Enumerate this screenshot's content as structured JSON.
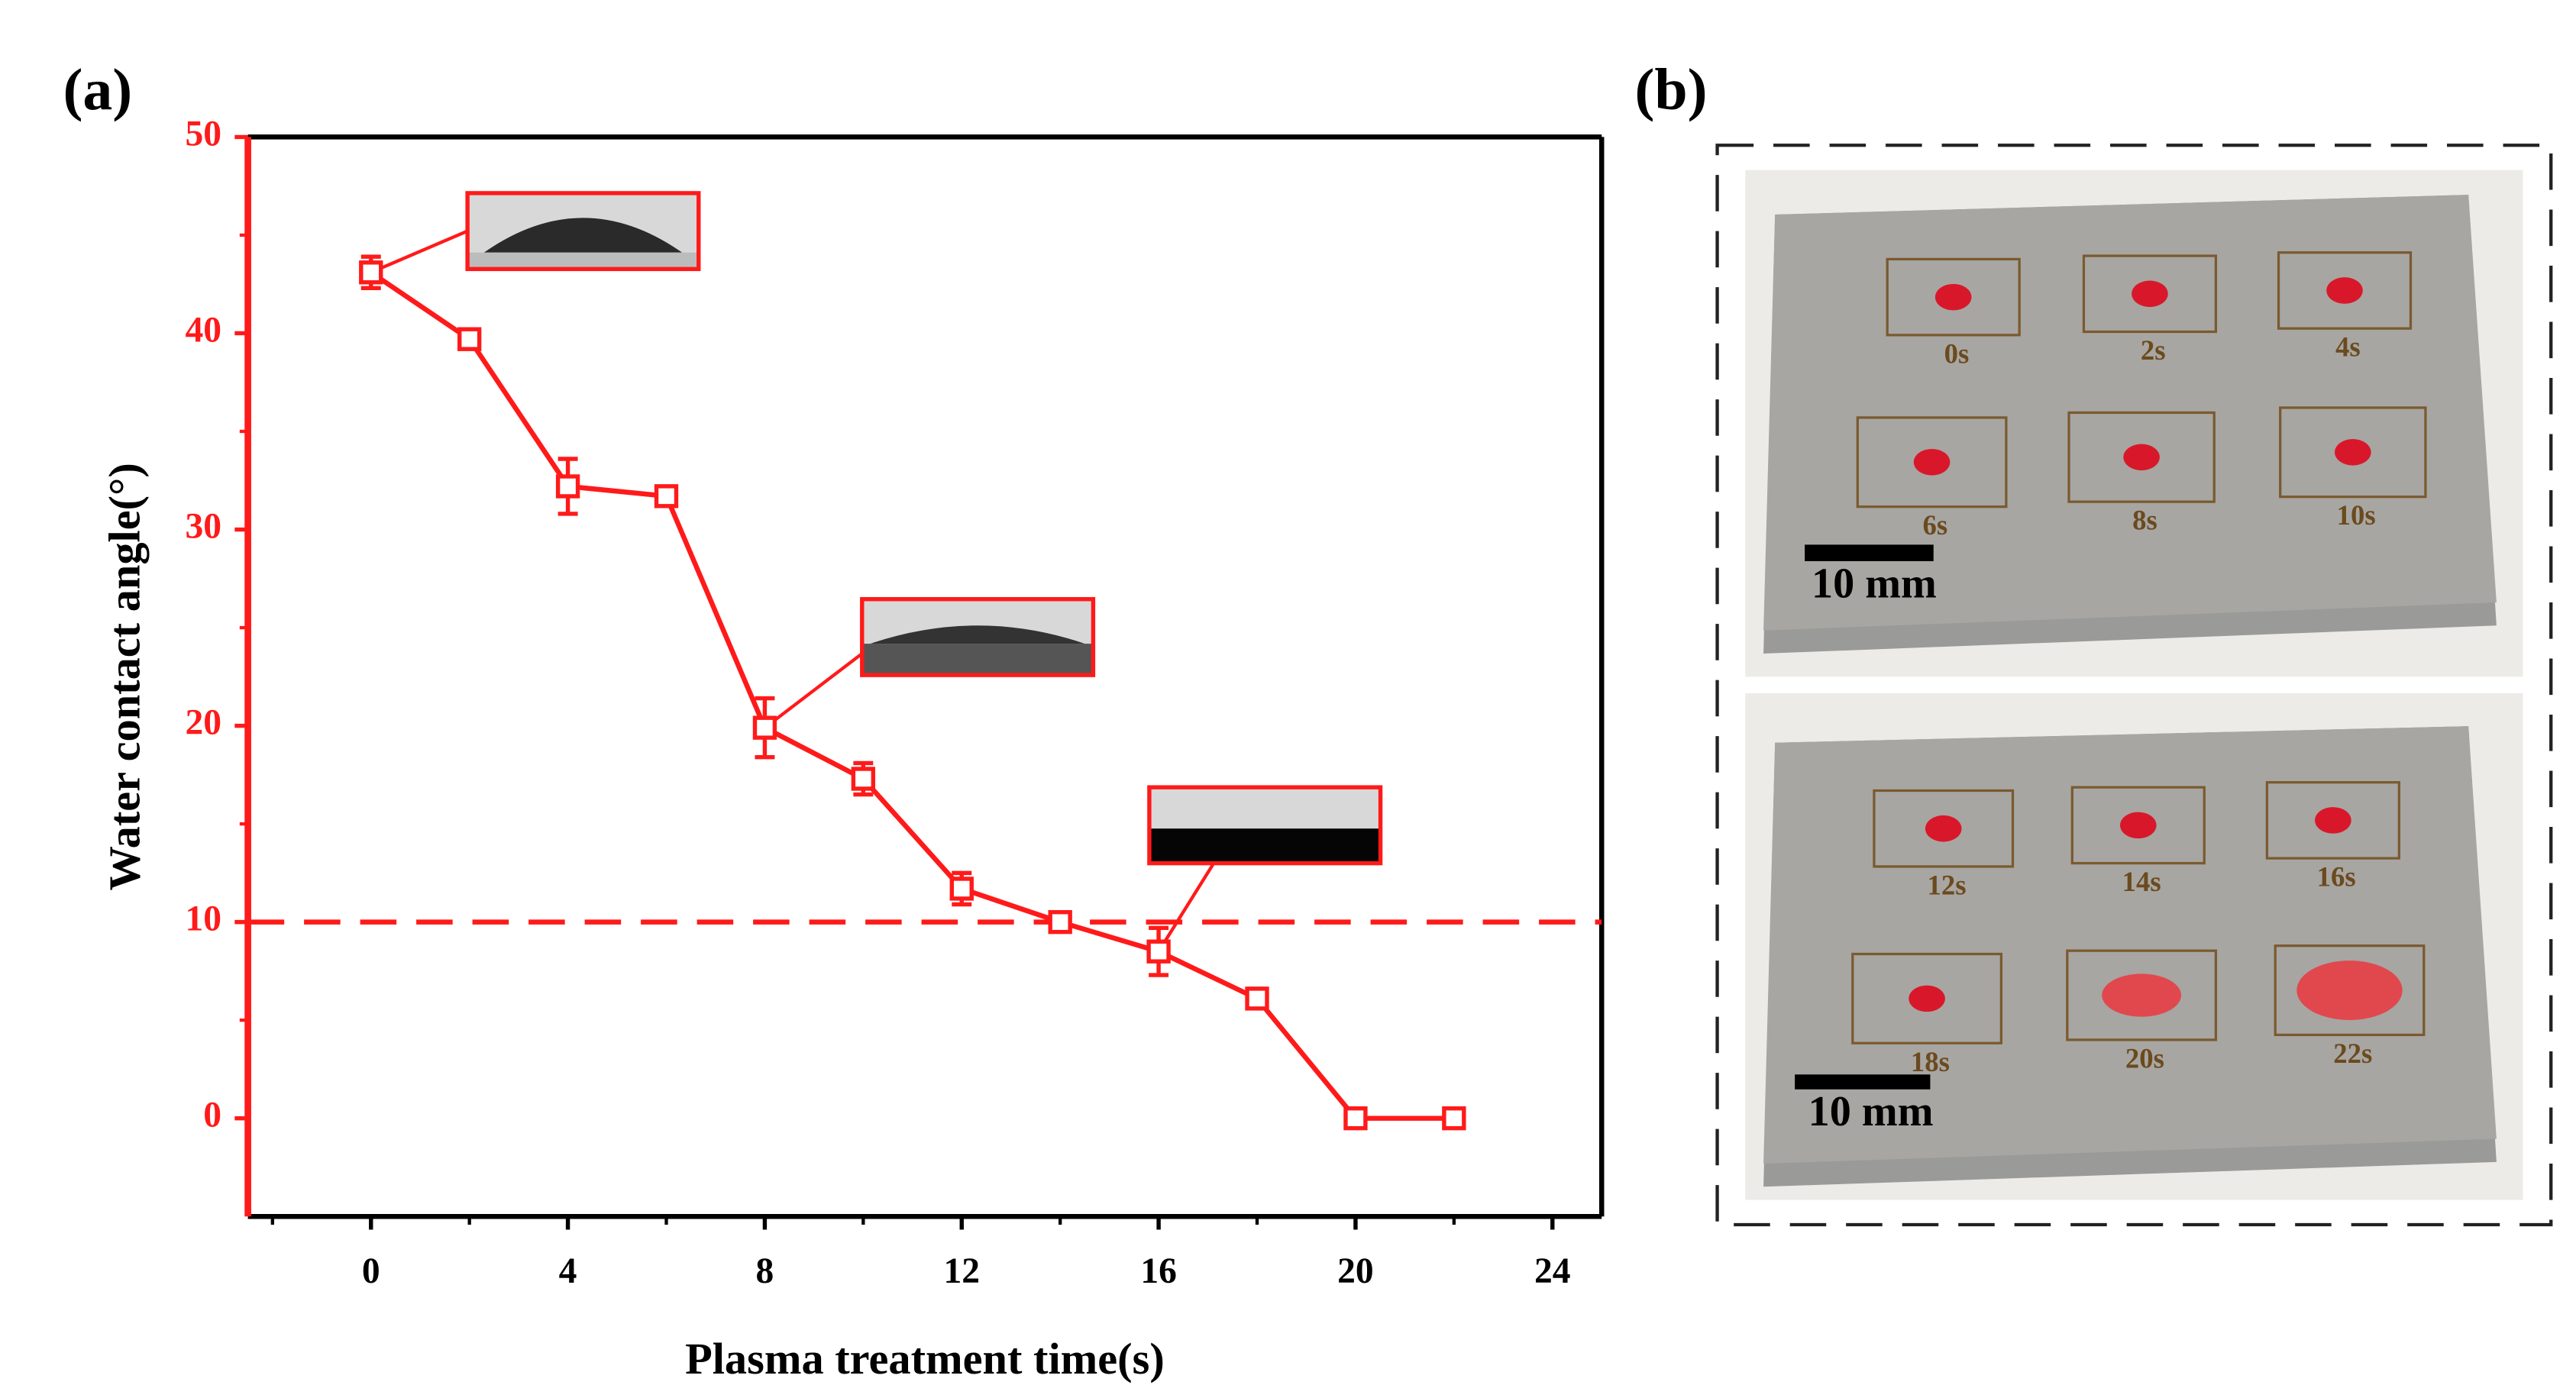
{
  "chart_data": {
    "type": "line",
    "x_label": "Plasma treatment time(s)",
    "y_label": "Water contact angle(°)",
    "x": [
      0,
      2,
      4,
      6,
      8,
      10,
      12,
      14,
      16,
      18,
      20,
      22
    ],
    "series": [
      {
        "color": "#ff1a1a",
        "values": [
          43.1,
          39.7,
          32.2,
          31.7,
          19.9,
          17.3,
          11.7,
          10.0,
          8.5,
          6.1,
          0,
          0
        ],
        "errors": [
          0.8,
          0.3,
          1.4,
          0.3,
          1.5,
          0.8,
          0.8,
          0.3,
          1.2,
          0.5,
          0,
          0
        ]
      }
    ],
    "reference_line": 10,
    "xlim": [
      -2.5,
      25
    ],
    "ylim": [
      -5,
      50
    ],
    "xticks": [
      0,
      4,
      8,
      12,
      16,
      20,
      24
    ],
    "xminorticks": [
      -2,
      2,
      6,
      10,
      14,
      18,
      22
    ],
    "yticks": [
      0,
      10,
      20,
      30,
      40,
      50
    ],
    "yminorticks": [
      5,
      15,
      25,
      35,
      45
    ]
  },
  "panel_labels": [
    "(a)",
    "(b)"
  ],
  "photos": [
    {
      "labels": [
        "0s",
        "2s",
        "4s",
        "6s",
        "8s",
        "10s"
      ],
      "scale_bar": "10 mm"
    },
    {
      "labels": [
        "12s",
        "14s",
        "16s",
        "18s",
        "20s",
        "22s"
      ],
      "scale_bar": "10 mm"
    }
  ]
}
